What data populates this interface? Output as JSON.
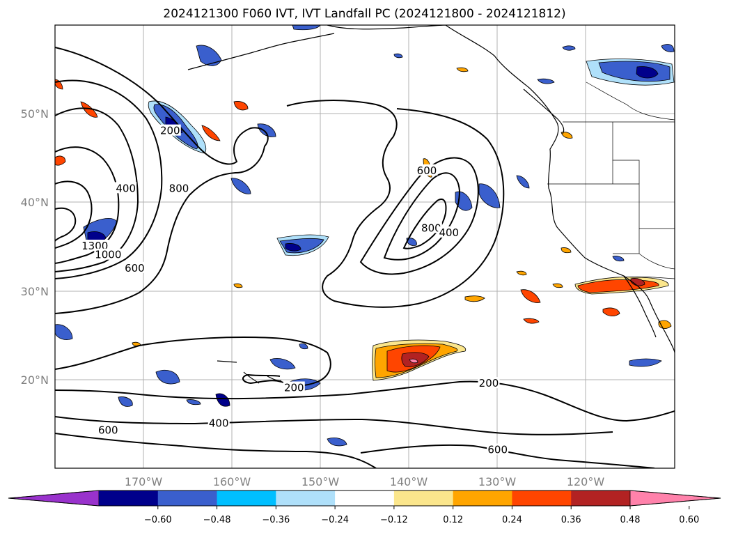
{
  "title": "2024121300 F060 IVT, IVT Landfall PC (2024121800 - 2024121812)",
  "lat_labels": [
    "50°N",
    "40°N",
    "30°N",
    "20°N"
  ],
  "lon_labels": [
    "170°W",
    "160°W",
    "150°W",
    "140°W",
    "130°W",
    "120°W"
  ],
  "ivt_contour_levels": [
    "200",
    "400",
    "600",
    "800",
    "1000",
    "1300"
  ],
  "ivt_contour_labels": [
    {
      "text": "200",
      "lon": -167,
      "lat": 48
    },
    {
      "text": "400",
      "lon": -172,
      "lat": 41.5
    },
    {
      "text": "800",
      "lon": -166,
      "lat": 41.5
    },
    {
      "text": "1300",
      "lon": -175.5,
      "lat": 35
    },
    {
      "text": "1000",
      "lon": -174,
      "lat": 34
    },
    {
      "text": "600",
      "lon": -171,
      "lat": 32.5
    },
    {
      "text": "600",
      "lon": -138,
      "lat": 43.5
    },
    {
      "text": "800",
      "lon": -137.5,
      "lat": 37
    },
    {
      "text": "400",
      "lon": -135.5,
      "lat": 36.5
    },
    {
      "text": "200",
      "lon": -153,
      "lat": 19
    },
    {
      "text": "200",
      "lon": -131,
      "lat": 19.5
    },
    {
      "text": "400",
      "lon": -161.5,
      "lat": 15
    },
    {
      "text": "600",
      "lon": -174,
      "lat": 14.2
    },
    {
      "text": "600",
      "lon": -130,
      "lat": 12
    }
  ],
  "colorbar": {
    "ticks": [
      "−0.60",
      "−0.48",
      "−0.36",
      "−0.24",
      "−0.12",
      "0.12",
      "0.24",
      "0.36",
      "0.48",
      "0.60"
    ],
    "colors": [
      "#9932cc",
      "#00008b",
      "#3a5fcd",
      "#00bfff",
      "#afe0fa",
      "#ffffff",
      "#fbe68c",
      "#ffa500",
      "#ff4500",
      "#b22222",
      "#ff82ab"
    ]
  }
}
